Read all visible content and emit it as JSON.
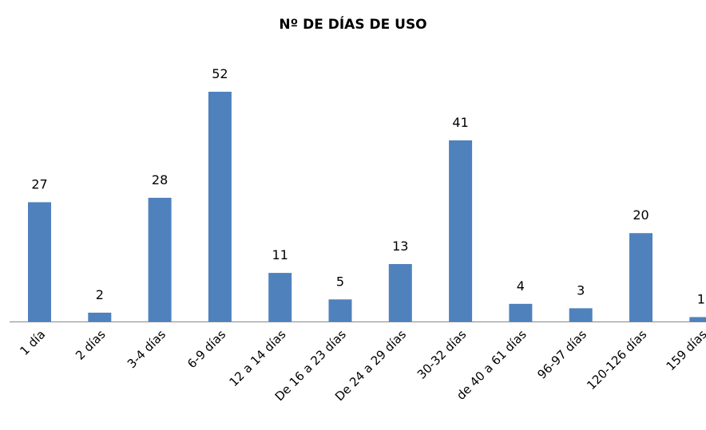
{
  "chart_data": {
    "type": "bar",
    "title": "Nº DE DÍAS DE USO",
    "categories": [
      "1 día",
      "2 días",
      "3-4 días",
      "6-9 días",
      "12 a 14 días",
      "De 16 a 23 días",
      "De 24 a 29 días",
      "30-32 días",
      "de 40 a 61 días",
      "96-97 días",
      "120-126 días",
      "159 días"
    ],
    "values": [
      27,
      2,
      28,
      52,
      11,
      5,
      13,
      41,
      4,
      3,
      20,
      1
    ],
    "color": "#4f81bd"
  }
}
